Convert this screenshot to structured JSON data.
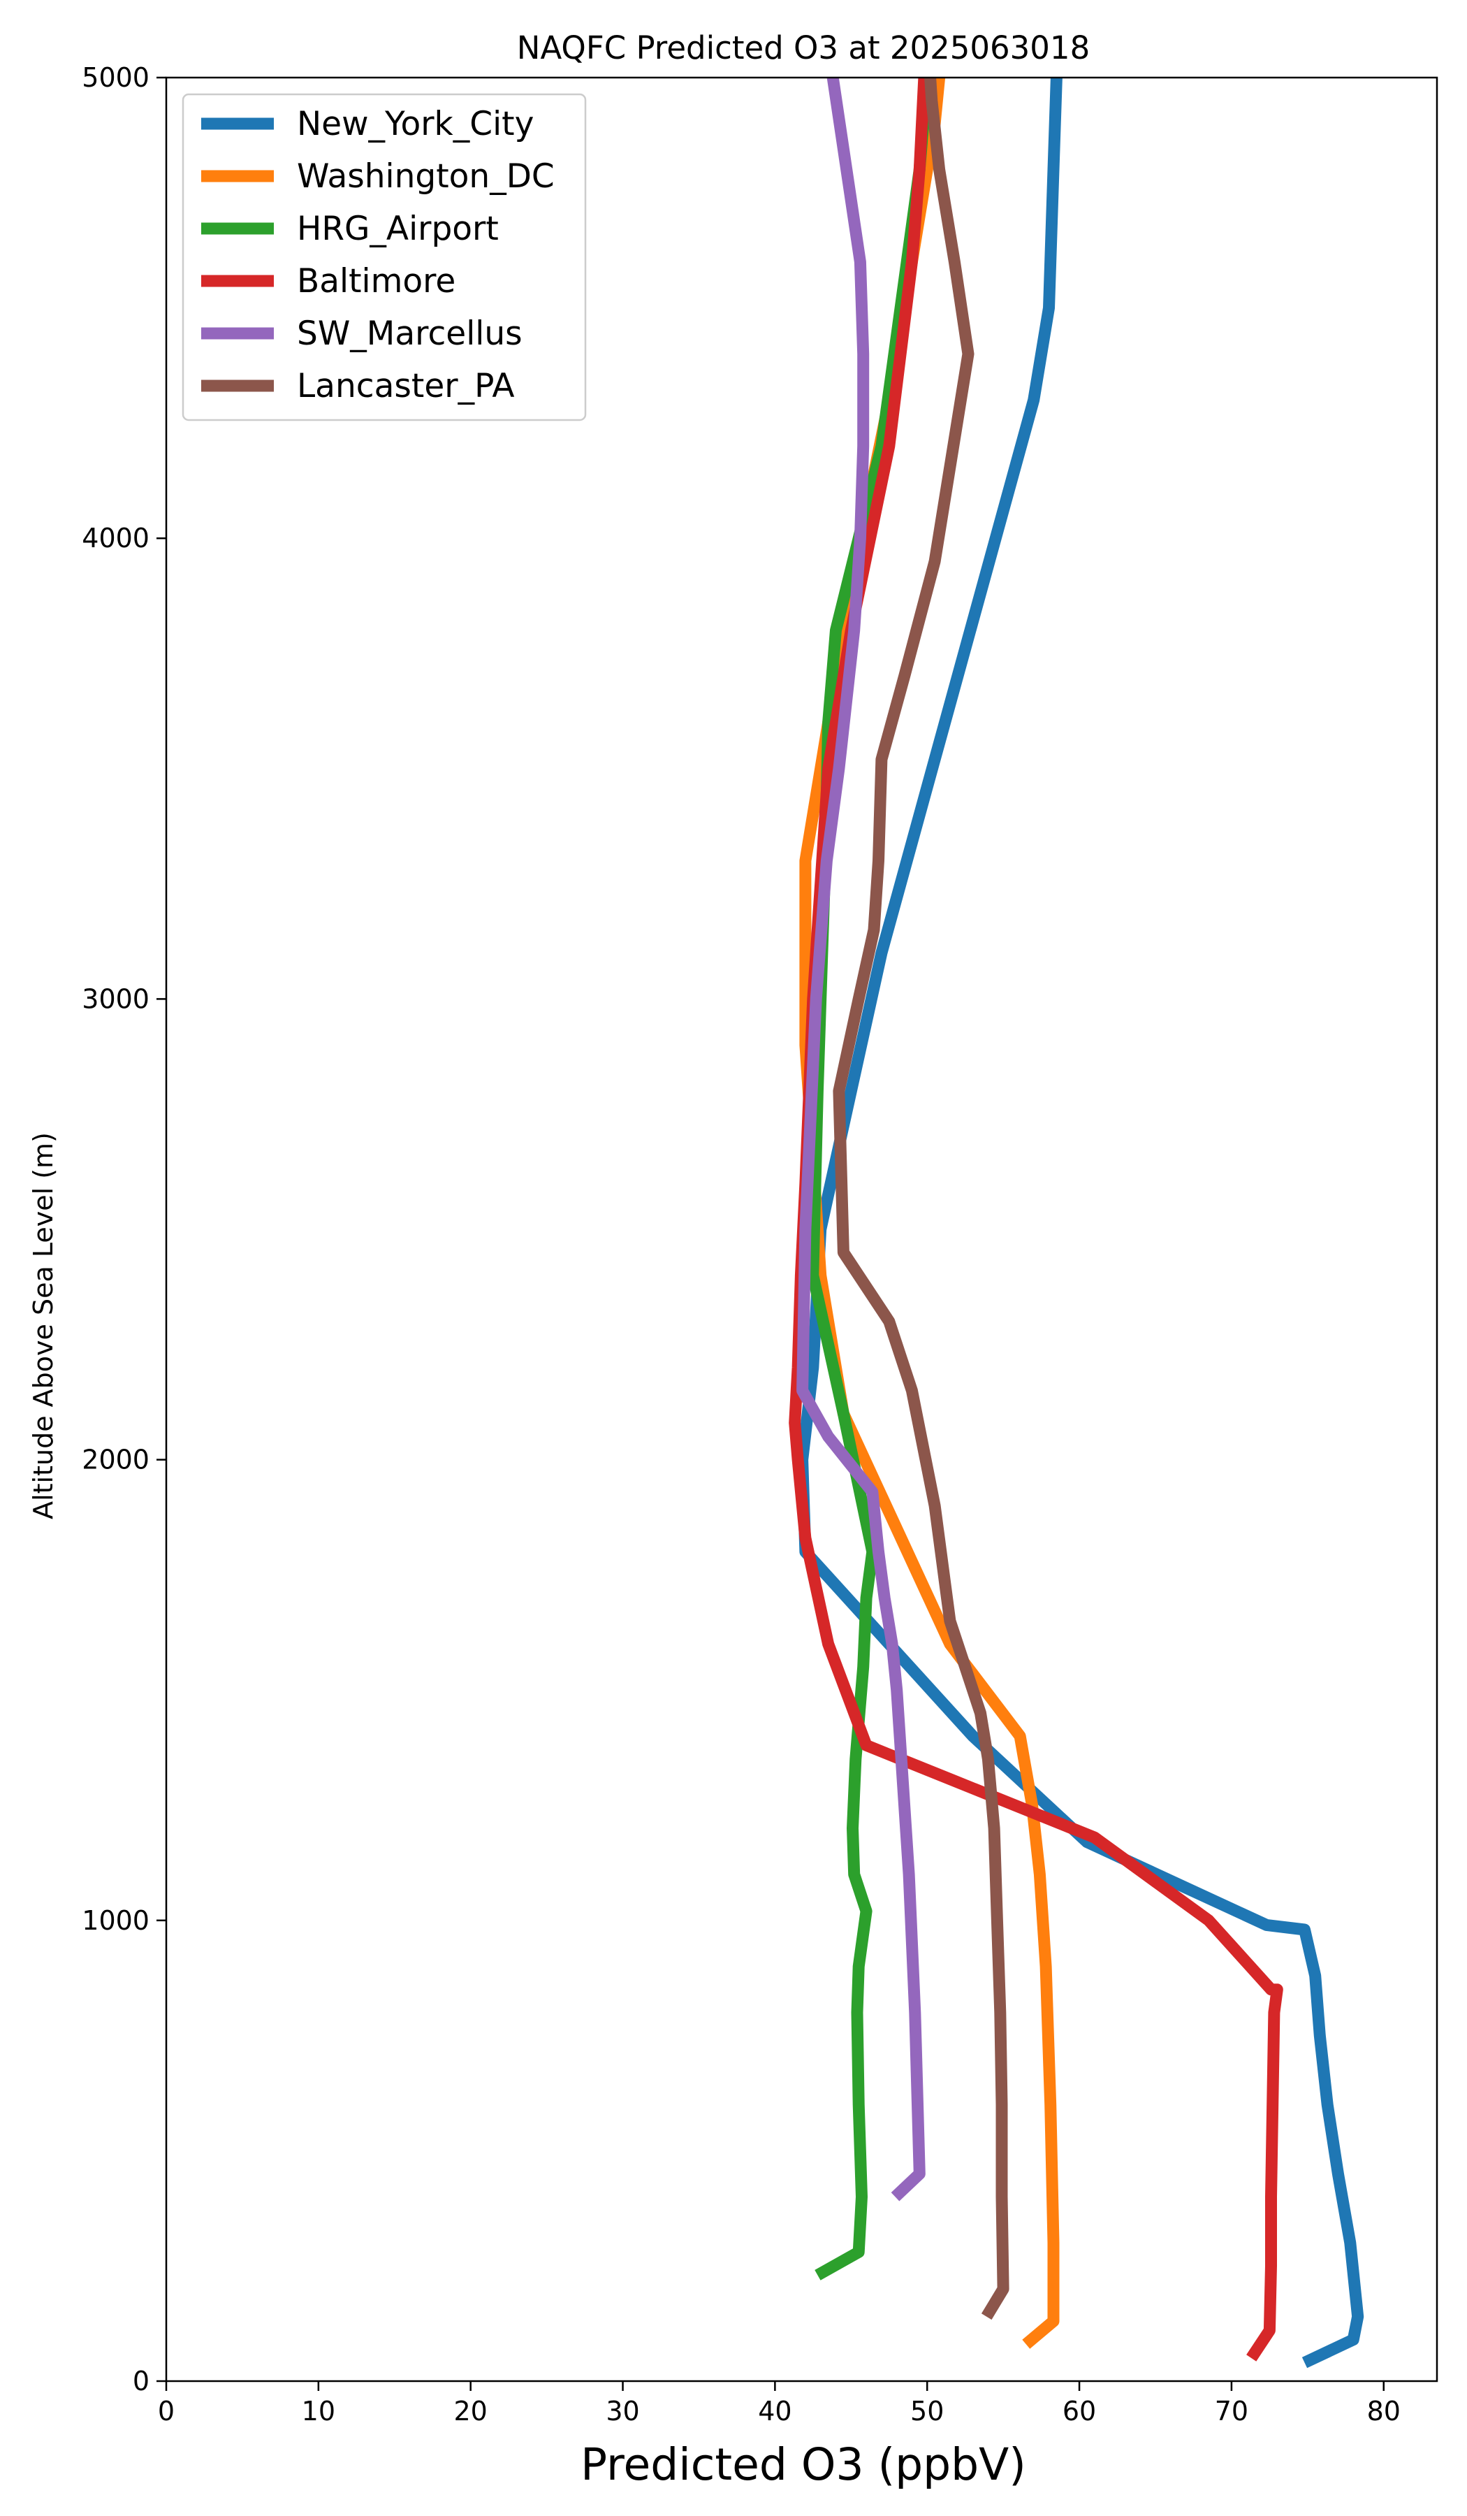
{
  "chart_data": {
    "type": "line",
    "title": "NAQFC Predicted O3 at 2025063018",
    "xlabel": "Predicted O3 (ppbV)",
    "ylabel": "Altitude Above Sea Level (m)",
    "xlim": [
      0,
      83.5
    ],
    "ylim": [
      0,
      5000
    ],
    "xticks": [
      0,
      10,
      20,
      30,
      40,
      50,
      60,
      70,
      80
    ],
    "yticks": [
      0,
      1000,
      2000,
      3000,
      4000,
      5000
    ],
    "grid": false,
    "legend_position": "upper-left",
    "series": [
      {
        "name": "New_York_City",
        "color": "#1f77b4",
        "x": [
          74.8,
          78.0,
          78.3,
          77.8,
          77.0,
          76.3,
          75.8,
          75.5,
          74.8,
          72.3,
          60.5,
          53.0,
          42.0,
          41.8,
          42.5,
          43.0,
          45.0,
          47.0,
          49.5,
          57.0,
          58.0,
          58.3,
          58.5
        ],
        "y": [
          40,
          90,
          140,
          300,
          450,
          600,
          750,
          880,
          980,
          990,
          1170,
          1400,
          1800,
          2000,
          2200,
          2500,
          2800,
          3100,
          3400,
          4300,
          4500,
          4800,
          5000
        ]
      },
      {
        "name": "Washington_DC",
        "color": "#ff7f0e",
        "x": [
          56.5,
          58.3,
          58.3,
          58.1,
          57.8,
          57.4,
          56.9,
          56.1,
          51.5,
          48.0,
          44.5,
          43.0,
          42.4,
          42.0,
          42.0,
          42.0,
          43.0,
          45.0,
          47.5,
          49.5,
          50.5,
          50.8
        ],
        "y": [
          80,
          130,
          300,
          600,
          900,
          1100,
          1250,
          1400,
          1600,
          1850,
          2100,
          2400,
          2700,
          2900,
          3100,
          3300,
          3500,
          3900,
          4300,
          4700,
          4900,
          5000
        ]
      },
      {
        "name": "HRG_Airport",
        "color": "#2ca02c",
        "x": [
          42.8,
          45.5,
          45.7,
          45.5,
          45.4,
          45.5,
          46.0,
          45.2,
          45.1,
          45.3,
          45.8,
          46.0,
          46.4,
          44.5,
          43.5,
          42.5,
          42.8,
          43.0,
          43.3,
          43.5,
          44.0,
          47.0,
          49.5,
          50.0
        ],
        "y": [
          230,
          280,
          400,
          600,
          800,
          900,
          1020,
          1100,
          1200,
          1350,
          1550,
          1700,
          1800,
          2100,
          2250,
          2400,
          2800,
          3000,
          3300,
          3600,
          3800,
          4200,
          4800,
          5000
        ]
      },
      {
        "name": "Baltimore",
        "color": "#d62728",
        "x": [
          71.3,
          72.5,
          72.6,
          72.6,
          72.7,
          72.8,
          73.0,
          72.6,
          68.5,
          61.0,
          46.0,
          43.5,
          42.0,
          41.5,
          41.3,
          41.5,
          41.7,
          42.0,
          42.5,
          43.5,
          45.0,
          47.5,
          49.0,
          49.5,
          49.8
        ],
        "y": [
          50,
          110,
          250,
          400,
          600,
          800,
          850,
          850,
          1000,
          1180,
          1380,
          1600,
          1830,
          2000,
          2080,
          2200,
          2400,
          2600,
          3000,
          3500,
          3800,
          4200,
          4600,
          4800,
          5000
        ]
      },
      {
        "name": "SW_Marcellus",
        "color": "#9467bd",
        "x": [
          47.9,
          49.5,
          49.2,
          48.8,
          48.4,
          48.0,
          47.7,
          47.2,
          46.8,
          46.4,
          43.5,
          41.8,
          42.0,
          42.7,
          43.4,
          44.2,
          45.2,
          45.6,
          45.8,
          45.8,
          45.6,
          43.8
        ],
        "y": [
          400,
          450,
          800,
          1100,
          1300,
          1500,
          1600,
          1700,
          1800,
          1930,
          2050,
          2150,
          2500,
          3000,
          3300,
          3500,
          3800,
          4000,
          4200,
          4400,
          4600,
          5000
        ]
      },
      {
        "name": "Lancaster_PA",
        "color": "#8c564b",
        "x": [
          53.9,
          55.0,
          54.9,
          54.9,
          54.8,
          54.6,
          54.4,
          54.0,
          53.5,
          52.5,
          51.5,
          50.5,
          49.0,
          47.5,
          44.5,
          44.2,
          45.5,
          46.5,
          46.8,
          47.0,
          48.5,
          50.5,
          52.7,
          51.8,
          50.8,
          50.3,
          50.2
        ],
        "y": [
          140,
          200,
          400,
          600,
          800,
          1000,
          1200,
          1350,
          1450,
          1550,
          1650,
          1900,
          2150,
          2300,
          2450,
          2800,
          3000,
          3150,
          3300,
          3520,
          3700,
          3950,
          4400,
          4600,
          4800,
          4950,
          5000
        ]
      }
    ]
  }
}
